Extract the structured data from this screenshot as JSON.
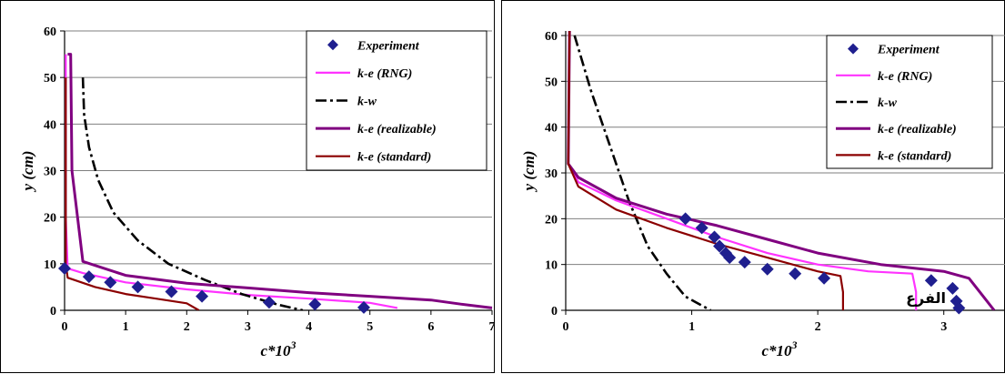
{
  "chart_data": [
    {
      "type": "line",
      "xlabel": "c*10",
      "xlabel_superscript": "3",
      "ylabel": "y (cm)",
      "xlim": [
        0,
        7
      ],
      "ylim": [
        0,
        60
      ],
      "xticks": [
        "0",
        "1",
        "2",
        "3",
        "4",
        "5",
        "6",
        "7"
      ],
      "yticks": [
        "0",
        "10",
        "20",
        "30",
        "40",
        "50",
        "60"
      ],
      "grid": "horizontal",
      "legend_position": "top-right",
      "series": [
        {
          "name": "Experiment",
          "kind": "points",
          "color": "#1f1f8f",
          "x": [
            0.0,
            0.4,
            0.75,
            1.2,
            1.75,
            2.25,
            3.35,
            4.1,
            4.9
          ],
          "y": [
            9,
            7.2,
            6,
            5,
            4,
            3,
            1.7,
            1.3,
            0.6
          ]
        },
        {
          "name": "k-e (RNG)",
          "kind": "line",
          "color": "#ff33ff",
          "dash": "",
          "x": [
            0.02,
            0.02,
            0.05,
            0.3,
            1.0,
            2.0,
            3.0,
            4.0,
            5.0,
            5.45
          ],
          "y": [
            55,
            20,
            9,
            8,
            6,
            4.5,
            3.3,
            2.5,
            1.6,
            0.5
          ]
        },
        {
          "name": "k-w",
          "kind": "line",
          "color": "#000000",
          "dash": "12,4,3,4",
          "x": [
            0.3,
            0.32,
            0.4,
            0.55,
            0.8,
            1.2,
            1.7,
            2.3,
            2.9,
            3.5,
            3.9
          ],
          "y": [
            50,
            42,
            35,
            28,
            21,
            15,
            10,
            6.5,
            3.5,
            1.2,
            0
          ]
        },
        {
          "name": "k-e (realizable)",
          "kind": "line",
          "color": "#800080",
          "dash": "",
          "x": [
            0.05,
            0.1,
            0.12,
            0.3,
            1.0,
            2.0,
            3.0,
            4.0,
            5.0,
            6.0,
            6.5,
            7.0
          ],
          "y": [
            55,
            55,
            30,
            10.5,
            7.5,
            5.8,
            4.8,
            3.8,
            3.0,
            2.2,
            1.3,
            0.5
          ]
        },
        {
          "name": "k-e (standard)",
          "kind": "line",
          "color": "#8b0000",
          "dash": "",
          "x": [
            0.02,
            0.02,
            0.05,
            0.5,
            1.0,
            1.5,
            2.0,
            2.2
          ],
          "y": [
            50,
            10,
            7,
            5,
            3.5,
            2.5,
            1.5,
            0
          ]
        }
      ]
    },
    {
      "type": "line",
      "xlabel": "c*10",
      "xlabel_superscript": "3",
      "ylabel": "y (cm)",
      "xlim": [
        0,
        3.5
      ],
      "ylim": [
        0,
        61
      ],
      "xticks": [
        "0",
        "1",
        "2",
        "3"
      ],
      "yticks": [
        "0",
        "10",
        "20",
        "30",
        "40",
        "50",
        "60"
      ],
      "grid": "horizontal",
      "legend_position": "top-right",
      "annotation": "الفرع",
      "series": [
        {
          "name": "Experiment",
          "kind": "points",
          "color": "#1f1f8f",
          "x": [
            0.95,
            1.08,
            1.18,
            1.22,
            1.27,
            1.3,
            1.42,
            1.6,
            1.82,
            2.05,
            2.9,
            3.07,
            3.1,
            3.12
          ],
          "y": [
            20,
            18,
            16,
            14,
            12.5,
            11.5,
            10.5,
            9,
            8,
            7,
            6.5,
            4.8,
            2,
            0.5
          ]
        },
        {
          "name": "k-e (RNG)",
          "kind": "line",
          "color": "#ff33ff",
          "dash": "",
          "x": [
            0.03,
            0.02,
            0.1,
            0.4,
            0.8,
            1.2,
            1.6,
            2.0,
            2.4,
            2.75,
            2.78,
            2.78
          ],
          "y": [
            61,
            32,
            28,
            24,
            20,
            16,
            12.5,
            10,
            8.5,
            8,
            4,
            0
          ]
        },
        {
          "name": "k-w",
          "kind": "line",
          "color": "#000000",
          "dash": "12,4,3,4",
          "x": [
            0.07,
            0.2,
            0.35,
            0.5,
            0.65,
            0.8,
            0.95,
            1.15
          ],
          "y": [
            60,
            48,
            36,
            24,
            14,
            8,
            3,
            0
          ]
        },
        {
          "name": "k-e (realizable)",
          "kind": "line",
          "color": "#800080",
          "dash": "",
          "x": [
            0.03,
            0.02,
            0.1,
            0.4,
            0.8,
            1.2,
            1.6,
            2.0,
            2.5,
            3.0,
            3.2,
            3.3,
            3.4
          ],
          "y": [
            61,
            32,
            29,
            24.5,
            21,
            18.5,
            15.5,
            12.5,
            10,
            8.5,
            7,
            3.5,
            0
          ]
        },
        {
          "name": "k-e (standard)",
          "kind": "line",
          "color": "#8b0000",
          "dash": "",
          "x": [
            0.03,
            0.02,
            0.1,
            0.4,
            0.8,
            1.2,
            1.6,
            2.0,
            2.18,
            2.2,
            2.2
          ],
          "y": [
            61,
            32,
            27,
            22,
            18,
            14.5,
            11.5,
            8.5,
            7.5,
            4,
            0
          ]
        }
      ]
    }
  ]
}
